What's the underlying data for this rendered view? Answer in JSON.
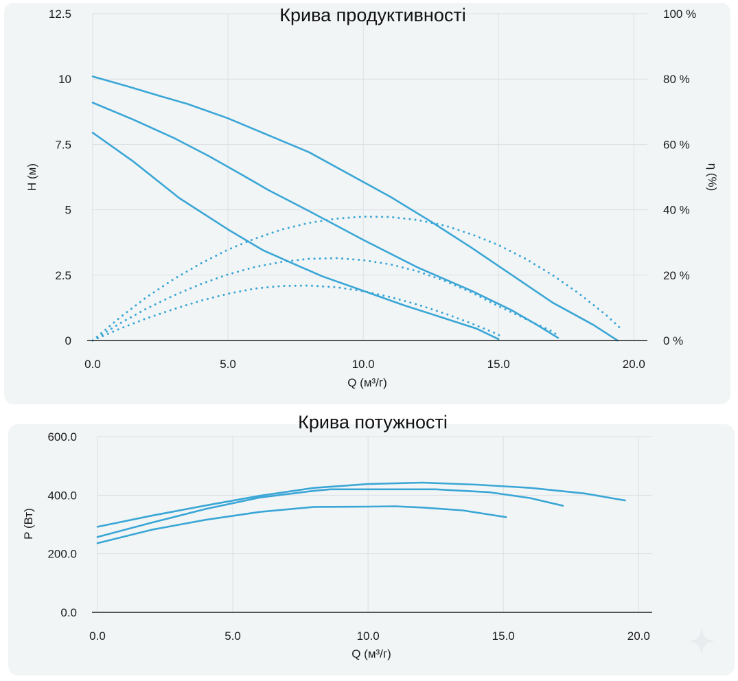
{
  "colors": {
    "curve": "#3aa6d6",
    "grid": "#dcdfe2",
    "axis": "#222222",
    "panel": "#f1f5f6"
  },
  "chart_data": [
    {
      "type": "line",
      "title": "Крива продуктивності",
      "xlabel": "Q (м³/г)",
      "ylabel": "H (м)",
      "y2label": "η (%)",
      "xlim": [
        0,
        20.5
      ],
      "ylim": [
        0,
        12.5
      ],
      "y2lim": [
        0,
        100
      ],
      "xticks": [
        "0.0",
        "5.0",
        "10.0",
        "15.0",
        "20.0"
      ],
      "xtick_values": [
        0,
        5,
        10,
        15,
        20
      ],
      "yticks": [
        "0",
        "2.5",
        "5",
        "7.5",
        "10",
        "12.5"
      ],
      "ytick_values": [
        0,
        2.5,
        5,
        7.5,
        10,
        12.5
      ],
      "y2ticks": [
        "0 %",
        "20 %",
        "40 %",
        "60 %",
        "80 %",
        "100 %"
      ],
      "y2tick_values": [
        0,
        20,
        40,
        60,
        80,
        100
      ],
      "grid": true,
      "series": [
        {
          "axis": "left",
          "style": "solid",
          "points": [
            [
              0,
              10.1
            ],
            [
              1.2,
              9.75
            ],
            [
              2.5,
              9.35
            ],
            [
              3.5,
              9.05
            ],
            [
              5,
              8.5
            ],
            [
              6.5,
              7.85
            ],
            [
              8,
              7.2
            ],
            [
              9.5,
              6.35
            ],
            [
              11,
              5.5
            ],
            [
              12.5,
              4.55
            ],
            [
              14,
              3.55
            ],
            [
              15.5,
              2.5
            ],
            [
              17,
              1.45
            ],
            [
              18.5,
              0.6
            ],
            [
              19.4,
              0
            ]
          ]
        },
        {
          "axis": "left",
          "style": "solid",
          "points": [
            [
              0,
              9.1
            ],
            [
              1.5,
              8.45
            ],
            [
              3,
              7.75
            ],
            [
              4.3,
              7.05
            ],
            [
              5.5,
              6.35
            ],
            [
              6.5,
              5.75
            ],
            [
              8,
              4.95
            ],
            [
              10,
              3.85
            ],
            [
              12,
              2.8
            ],
            [
              14,
              1.9
            ],
            [
              15.5,
              1.15
            ],
            [
              16.5,
              0.55
            ],
            [
              17.2,
              0.1
            ]
          ]
        },
        {
          "axis": "left",
          "style": "solid",
          "points": [
            [
              0,
              7.95
            ],
            [
              1.5,
              6.85
            ],
            [
              3.2,
              5.45
            ],
            [
              5,
              4.25
            ],
            [
              6.3,
              3.45
            ],
            [
              7.5,
              2.9
            ],
            [
              8.5,
              2.45
            ],
            [
              10,
              1.9
            ],
            [
              11.5,
              1.35
            ],
            [
              13,
              0.85
            ],
            [
              14.2,
              0.45
            ],
            [
              15,
              0.05
            ]
          ]
        },
        {
          "axis": "right",
          "style": "dotted",
          "points": [
            [
              0,
              0
            ],
            [
              1,
              7
            ],
            [
              2,
              13.3
            ],
            [
              3,
              18.8
            ],
            [
              4,
              23.6
            ],
            [
              5,
              27.8
            ],
            [
              6,
              31.2
            ],
            [
              7,
              34
            ],
            [
              8,
              36
            ],
            [
              9,
              37.3
            ],
            [
              10,
              37.9
            ],
            [
              11,
              37.8
            ],
            [
              12,
              36.9
            ],
            [
              13,
              35.2
            ],
            [
              14,
              32.5
            ],
            [
              15,
              29.2
            ],
            [
              16,
              25
            ],
            [
              17,
              20
            ],
            [
              18,
              14.2
            ],
            [
              19,
              7.6
            ],
            [
              19.6,
              3
            ]
          ]
        },
        {
          "axis": "right",
          "style": "dotted",
          "points": [
            [
              0,
              0
            ],
            [
              1,
              5.2
            ],
            [
              2,
              9.8
            ],
            [
              3,
              13.8
            ],
            [
              4,
              17.3
            ],
            [
              5,
              20.2
            ],
            [
              6,
              22.5
            ],
            [
              7,
              24.1
            ],
            [
              8,
              25
            ],
            [
              9,
              25.2
            ],
            [
              10,
              24.6
            ],
            [
              11,
              23.3
            ],
            [
              12,
              21.2
            ],
            [
              13,
              18.3
            ],
            [
              14,
              14.7
            ],
            [
              15,
              10.5
            ],
            [
              16,
              6.6
            ],
            [
              17,
              2.7
            ],
            [
              17.2,
              1.5
            ]
          ]
        },
        {
          "axis": "right",
          "style": "dotted",
          "points": [
            [
              0,
              0
            ],
            [
              1,
              3.6
            ],
            [
              2,
              6.8
            ],
            [
              3,
              9.6
            ],
            [
              4,
              12.2
            ],
            [
              5,
              14.3
            ],
            [
              6,
              15.9
            ],
            [
              7,
              16.7
            ],
            [
              8,
              16.8
            ],
            [
              9,
              16.3
            ],
            [
              10,
              15.1
            ],
            [
              11,
              13.3
            ],
            [
              12,
              11
            ],
            [
              13,
              8.3
            ],
            [
              14,
              5.2
            ],
            [
              15,
              1.8
            ],
            [
              15.1,
              0.5
            ]
          ]
        }
      ]
    },
    {
      "type": "line",
      "title": "Крива потужності",
      "xlabel": "Q (м³/г)",
      "ylabel": "P (Вт)",
      "xlim": [
        0,
        20.5
      ],
      "ylim": [
        0,
        600
      ],
      "xticks": [
        "0.0",
        "5.0",
        "10.0",
        "15.0",
        "20.0"
      ],
      "xtick_values": [
        0,
        5,
        10,
        15,
        20
      ],
      "yticks": [
        "0.0",
        "200.0",
        "400.0",
        "600.0"
      ],
      "ytick_values": [
        0,
        200,
        400,
        600
      ],
      "grid": true,
      "series": [
        {
          "style": "solid",
          "points": [
            [
              0,
              292
            ],
            [
              2,
              330
            ],
            [
              4,
              365
            ],
            [
              6,
              398
            ],
            [
              8,
              425
            ],
            [
              10,
              438
            ],
            [
              12,
              443
            ],
            [
              14,
              436
            ],
            [
              16,
              425
            ],
            [
              18,
              406
            ],
            [
              19.5,
              382
            ]
          ]
        },
        {
          "style": "solid",
          "points": [
            [
              0,
              257
            ],
            [
              2,
              306
            ],
            [
              4,
              353
            ],
            [
              6,
              392
            ],
            [
              8,
              415
            ],
            [
              8.6,
              420
            ],
            [
              10,
              420
            ],
            [
              12.5,
              420
            ],
            [
              14.5,
              410
            ],
            [
              16,
              390
            ],
            [
              17.2,
              364
            ]
          ]
        },
        {
          "style": "solid",
          "points": [
            [
              0,
              236
            ],
            [
              2,
              282
            ],
            [
              4,
              316
            ],
            [
              6,
              343
            ],
            [
              8,
              360
            ],
            [
              10,
              361
            ],
            [
              11,
              362
            ],
            [
              12,
              358
            ],
            [
              13.5,
              348
            ],
            [
              15.1,
              325
            ]
          ]
        }
      ]
    }
  ]
}
